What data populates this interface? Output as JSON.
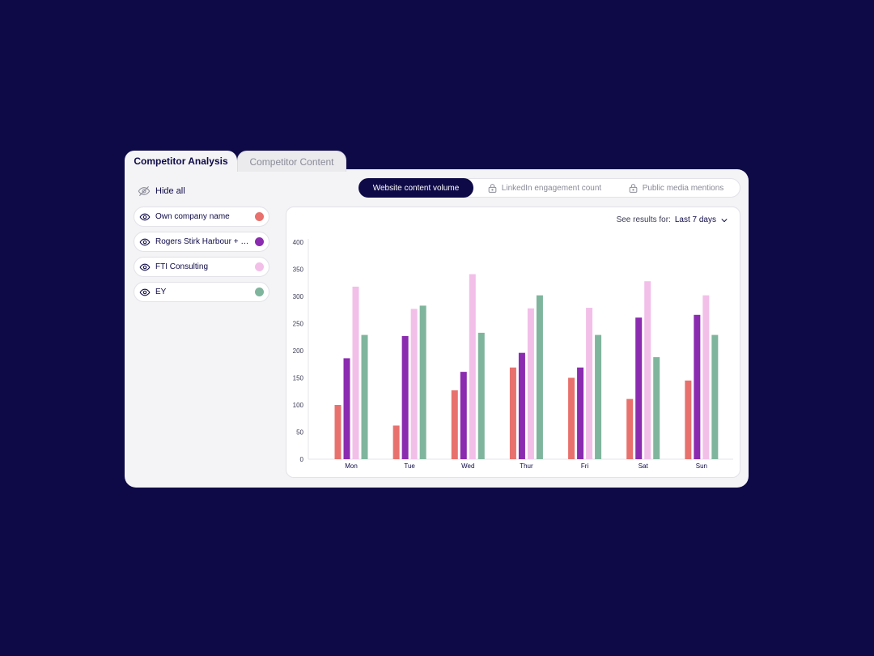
{
  "tabs": {
    "active": "Competitor Analysis",
    "inactive": "Competitor Content"
  },
  "sidebar": {
    "hide_all": "Hide all",
    "competitors": [
      {
        "name": "Own company name",
        "color": "#e8716d"
      },
      {
        "name": "Rogers Stirk Harbour + P...",
        "color": "#8b2bb0"
      },
      {
        "name": "FTI Consulting",
        "color": "#f2bfe9"
      },
      {
        "name": "EY",
        "color": "#7fb59d"
      }
    ]
  },
  "metric_tabs": {
    "website": "Website content volume",
    "linkedin": "LinkedIn engagement count",
    "media": "Public media mentions"
  },
  "results": {
    "label": "See results for:",
    "value": "Last 7 days"
  },
  "chart_data": {
    "type": "bar",
    "categories": [
      "Mon",
      "Tue",
      "Wed",
      "Thur",
      "Fri",
      "Sat",
      "Sun"
    ],
    "ylim": [
      0,
      400
    ],
    "yticks": [
      0,
      50,
      100,
      150,
      200,
      250,
      300,
      350,
      400
    ],
    "series": [
      {
        "name": "Own company name",
        "color": "#e8716d",
        "values": [
          100,
          62,
          127,
          169,
          150,
          111,
          145
        ]
      },
      {
        "name": "Rogers Stirk Harbour + P...",
        "color": "#8b2bb0",
        "values": [
          186,
          227,
          161,
          196,
          169,
          261,
          266
        ]
      },
      {
        "name": "FTI Consulting",
        "color": "#f2bfe9",
        "values": [
          318,
          277,
          341,
          278,
          279,
          328,
          302
        ]
      },
      {
        "name": "EY",
        "color": "#7fb59d",
        "values": [
          229,
          283,
          233,
          302,
          229,
          188,
          229
        ]
      }
    ]
  }
}
